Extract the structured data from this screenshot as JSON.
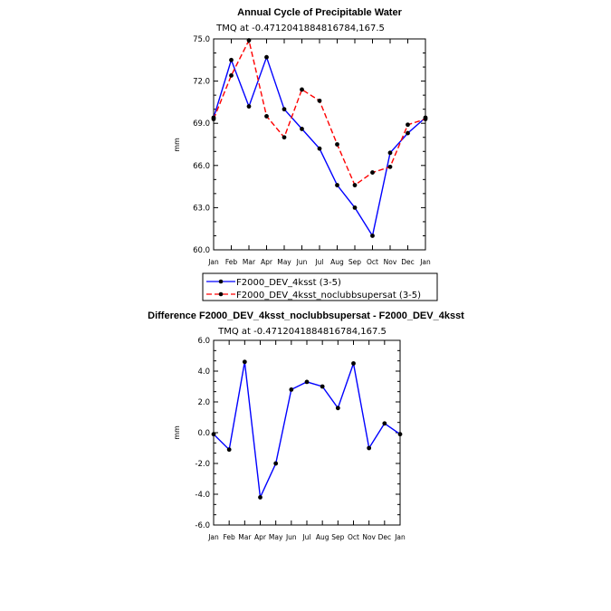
{
  "chart_data": [
    {
      "type": "line",
      "title": "Annual Cycle of Precipitable Water",
      "subtitle": "TMQ at -0.4712041884816784,167.5",
      "ylabel": "mm",
      "xlabel": "",
      "ylim": [
        60.0,
        75.0
      ],
      "yticks": [
        "60.0",
        "63.0",
        "66.0",
        "69.0",
        "72.0",
        "75.0"
      ],
      "categories": [
        "Jan",
        "Feb",
        "Mar",
        "Apr",
        "May",
        "Jun",
        "Jul",
        "Aug",
        "Sep",
        "Oct",
        "Nov",
        "Dec",
        "Jan"
      ],
      "series": [
        {
          "name": "F2000_DEV_4ksst (3-5)",
          "color": "#0000ff",
          "dash": "solid",
          "values": [
            69.4,
            73.5,
            70.2,
            73.7,
            70.0,
            68.6,
            67.2,
            64.6,
            63.0,
            61.0,
            66.9,
            68.3,
            69.4
          ]
        },
        {
          "name": "F2000_DEV_4ksst_noclubbsupersat (3-5)",
          "color": "#ff0000",
          "dash": "dashed",
          "values": [
            69.3,
            72.4,
            74.9,
            69.5,
            68.0,
            71.4,
            70.6,
            67.5,
            64.6,
            65.5,
            65.9,
            68.9,
            69.3
          ]
        }
      ]
    },
    {
      "type": "line",
      "title": "Difference F2000_DEV_4ksst_noclubbsupersat - F2000_DEV_4ksst",
      "subtitle": "TMQ at -0.4712041884816784,167.5",
      "ylabel": "mm",
      "xlabel": "",
      "ylim": [
        -6.0,
        6.0
      ],
      "yticks": [
        "-6.0",
        "-4.0",
        "-2.0",
        "0.0",
        "2.0",
        "4.0",
        "6.0"
      ],
      "categories": [
        "Jan",
        "Feb",
        "Mar",
        "Apr",
        "May",
        "Jun",
        "Jul",
        "Aug",
        "Sep",
        "Oct",
        "Nov",
        "Dec",
        "Jan"
      ],
      "series": [
        {
          "name": "difference",
          "color": "#0000ff",
          "dash": "solid",
          "values": [
            -0.1,
            -1.1,
            4.6,
            -4.2,
            -2.0,
            2.8,
            3.3,
            3.0,
            1.6,
            4.5,
            -1.0,
            0.6,
            -0.1
          ]
        }
      ]
    }
  ]
}
